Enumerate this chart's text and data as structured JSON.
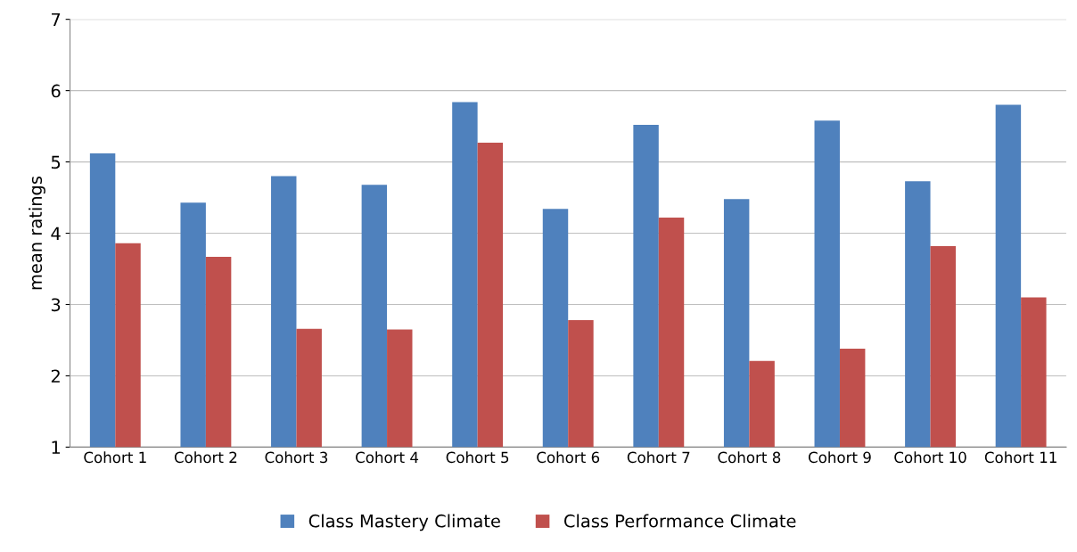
{
  "chart_data": {
    "type": "bar",
    "ylabel": "mean ratings",
    "categories": [
      "Cohort 1",
      "Cohort 2",
      "Cohort 3",
      "Cohort 4",
      "Cohort 5",
      "Cohort 6",
      "Cohort 7",
      "Cohort 8",
      "Cohort 9",
      "Cohort 10",
      "Cohort 11"
    ],
    "series": [
      {
        "name": "Class Mastery Climate",
        "color": "#4f81bd",
        "values": [
          5.12,
          4.43,
          4.8,
          4.68,
          5.84,
          4.34,
          5.52,
          4.48,
          5.58,
          4.73,
          5.8
        ]
      },
      {
        "name": "Class Performance Climate",
        "color": "#c0504d",
        "values": [
          3.86,
          3.67,
          2.66,
          2.65,
          5.27,
          2.78,
          4.22,
          2.21,
          2.38,
          3.82,
          3.1
        ]
      }
    ],
    "ylim": [
      1,
      7
    ],
    "yticks": [
      1,
      2,
      3,
      4,
      5,
      6,
      7
    ],
    "grid": "y",
    "legend": "bottom"
  }
}
